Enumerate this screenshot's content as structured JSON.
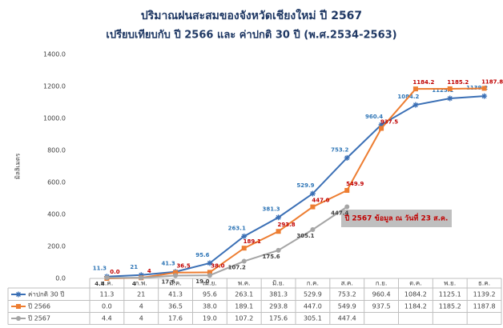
{
  "chart_data": {
    "type": "line",
    "title": "ปริมาณฝนสะสมของจังหวัดเชียงใหม่ ปี 2567",
    "subtitle": "เปรียบเทียบกับ ปี 2566 และ ค่าปกติ 30 ปี (พ.ศ.2534-2563)",
    "y_label": "มิลลิเมตร",
    "annotation": "ปี 2567 ข้อมูล ณ วันที่ 23 ส.ค.",
    "categories": [
      "ม.ค.",
      "ก.พ.",
      "มี.ค.",
      "เม.ย.",
      "พ.ค.",
      "มิ.ย.",
      "ก.ค.",
      "ส.ค.",
      "ก.ย.",
      "ต.ค.",
      "พ.ย.",
      "ธ.ค."
    ],
    "series": [
      {
        "name": "ค่าปกติ 30 ปี",
        "color": "#3a6fb5",
        "label_color": "#2e75b6",
        "marker": "star",
        "values": [
          11.3,
          21,
          41.3,
          95.6,
          263.1,
          381.3,
          529.9,
          753.2,
          960.4,
          1084.2,
          1125.1,
          1139.2
        ],
        "value_labels": [
          "11.3",
          "21",
          "41.3",
          "95.6",
          "263.1",
          "381.3",
          "529.9",
          "753.2",
          "960.4",
          "1084.2",
          "1125.1",
          "1139.2"
        ]
      },
      {
        "name": "ปี 2566",
        "color": "#ed7d31",
        "label_color": "#c00000",
        "marker": "square",
        "values": [
          0,
          4,
          36.5,
          38,
          189.1,
          293.8,
          447,
          549.9,
          937.5,
          1184.2,
          1185.2,
          1187.8
        ],
        "value_labels": [
          "0.0",
          "4",
          "36.5",
          "38.0",
          "189.1",
          "293.8",
          "447.0",
          "549.9",
          "937.5",
          "1184.2",
          "1185.2",
          "1187.8"
        ]
      },
      {
        "name": "ปี 2567",
        "color": "#a5a5a5",
        "label_color": "#404040",
        "marker": "circle",
        "values": [
          4.4,
          4,
          17.6,
          19,
          107.2,
          175.6,
          305.1,
          447.4,
          null,
          null,
          null,
          null
        ],
        "value_labels": [
          "4.4",
          "4",
          "17.6",
          "19.0",
          "107.2",
          "175.6",
          "305.1",
          "447.4",
          null,
          null,
          null,
          null
        ]
      }
    ],
    "ylim": [
      0,
      1400
    ],
    "yticks": [
      {
        "value": 0,
        "label": "0.0"
      },
      {
        "value": 200,
        "label": "200.0"
      },
      {
        "value": 400,
        "label": "400.0"
      },
      {
        "value": 600,
        "label": "600.0"
      },
      {
        "value": 800,
        "label": "800.0"
      },
      {
        "value": 1000,
        "label": "1000.0"
      },
      {
        "value": 1200,
        "label": "1200.0"
      },
      {
        "value": 1400,
        "label": "1400.0"
      }
    ],
    "grid": false
  }
}
